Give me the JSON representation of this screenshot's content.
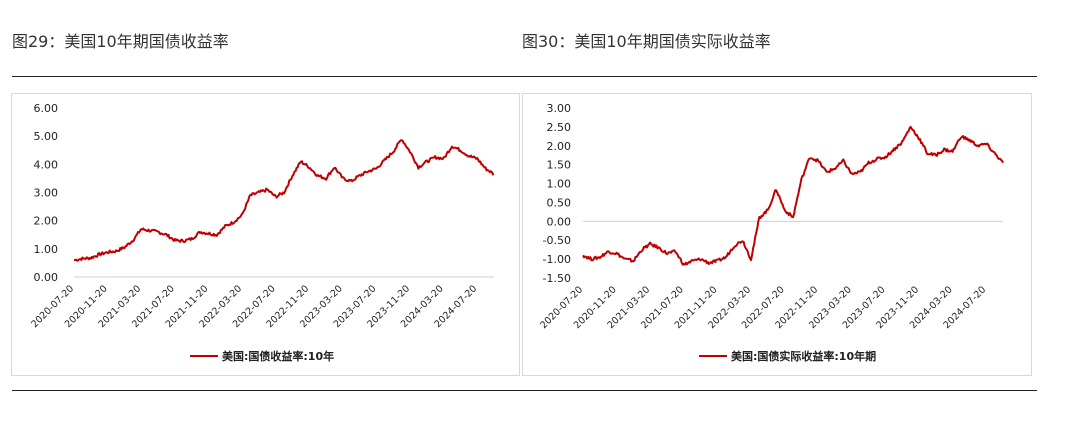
{
  "figures": [
    {
      "title": "图29：美国10年期国债收益率",
      "chart_data": {
        "type": "line",
        "title": "",
        "xlabel": "",
        "ylabel": "",
        "ylim": [
          0,
          6
        ],
        "y_ticks": [
          "0.00",
          "1.00",
          "2.00",
          "3.00",
          "4.00",
          "5.00",
          "6.00"
        ],
        "x_ticks": [
          "2020-07-20",
          "2020-11-20",
          "2021-03-20",
          "2021-07-20",
          "2021-11-20",
          "2022-03-20",
          "2022-07-20",
          "2022-11-20",
          "2023-03-20",
          "2023-07-20",
          "2023-11-20",
          "2024-03-20",
          "2024-07-20"
        ],
        "grid": "baseline only",
        "legend": "bottom-center",
        "series": [
          {
            "name": "美国:国债收益率:10年",
            "color": "#c00000",
            "x": [
              "2020-07-20",
              "2020-08-20",
              "2020-09-20",
              "2020-10-20",
              "2020-11-20",
              "2020-12-20",
              "2021-01-20",
              "2021-02-20",
              "2021-03-20",
              "2021-04-20",
              "2021-05-20",
              "2021-06-20",
              "2021-07-20",
              "2021-08-20",
              "2021-09-20",
              "2021-10-20",
              "2021-11-20",
              "2021-12-20",
              "2022-01-20",
              "2022-02-20",
              "2022-03-20",
              "2022-04-20",
              "2022-05-20",
              "2022-06-20",
              "2022-07-20",
              "2022-08-20",
              "2022-09-20",
              "2022-10-20",
              "2022-11-20",
              "2022-12-20",
              "2023-01-20",
              "2023-02-20",
              "2023-03-20",
              "2023-04-20",
              "2023-05-20",
              "2023-06-20",
              "2023-07-20",
              "2023-08-20",
              "2023-09-20",
              "2023-10-20",
              "2023-11-20",
              "2023-12-20",
              "2024-01-20",
              "2024-02-20",
              "2024-03-20",
              "2024-04-20",
              "2024-05-20",
              "2024-06-20",
              "2024-07-20",
              "2024-08-20",
              "2024-09-20"
            ],
            "values": [
              0.6,
              0.65,
              0.68,
              0.8,
              0.88,
              0.92,
              1.05,
              1.3,
              1.7,
              1.65,
              1.6,
              1.5,
              1.3,
              1.28,
              1.35,
              1.6,
              1.55,
              1.5,
              1.8,
              1.95,
              2.2,
              2.9,
              3.0,
              3.1,
              2.85,
              3.0,
              3.6,
              4.1,
              3.9,
              3.6,
              3.5,
              3.9,
              3.5,
              3.4,
              3.6,
              3.75,
              3.85,
              4.15,
              4.45,
              4.9,
              4.45,
              3.9,
              4.1,
              4.25,
              4.2,
              4.65,
              4.5,
              4.3,
              4.2,
              3.85,
              3.65
            ]
          }
        ]
      }
    },
    {
      "title": "图30：美国10年期国债实际收益率",
      "chart_data": {
        "type": "line",
        "title": "",
        "xlabel": "",
        "ylabel": "",
        "ylim": [
          -1.5,
          3.0
        ],
        "y_ticks": [
          "-1.50",
          "-1.00",
          "-0.50",
          "0.00",
          "0.50",
          "1.00",
          "1.50",
          "2.00",
          "2.50",
          "3.00"
        ],
        "x_ticks": [
          "2020-07-20",
          "2020-11-20",
          "2021-03-20",
          "2021-07-20",
          "2021-11-20",
          "2022-03-20",
          "2022-07-20",
          "2022-11-20",
          "2023-03-20",
          "2023-07-20",
          "2023-11-20",
          "2024-03-20",
          "2024-07-20"
        ],
        "grid": "zero line only",
        "legend": "bottom-center",
        "series": [
          {
            "name": "美国:国债实际收益率:10年期",
            "color": "#c00000",
            "x": [
              "2020-07-20",
              "2020-08-20",
              "2020-09-20",
              "2020-10-20",
              "2020-11-20",
              "2020-12-20",
              "2021-01-20",
              "2021-02-20",
              "2021-03-20",
              "2021-04-20",
              "2021-05-20",
              "2021-06-20",
              "2021-07-20",
              "2021-08-20",
              "2021-09-20",
              "2021-10-20",
              "2021-11-20",
              "2021-12-20",
              "2022-01-20",
              "2022-02-20",
              "2022-03-20",
              "2022-04-20",
              "2022-05-20",
              "2022-06-20",
              "2022-07-20",
              "2022-08-20",
              "2022-09-20",
              "2022-10-20",
              "2022-11-20",
              "2022-12-20",
              "2023-01-20",
              "2023-02-20",
              "2023-03-20",
              "2023-04-20",
              "2023-05-20",
              "2023-06-20",
              "2023-07-20",
              "2023-08-20",
              "2023-09-20",
              "2023-10-20",
              "2023-11-20",
              "2023-12-20",
              "2024-01-20",
              "2024-02-20",
              "2024-03-20",
              "2024-04-20",
              "2024-05-20",
              "2024-06-20",
              "2024-07-20",
              "2024-08-20",
              "2024-09-20"
            ],
            "values": [
              -0.9,
              -1.0,
              -0.95,
              -0.8,
              -0.85,
              -1.0,
              -1.05,
              -0.75,
              -0.6,
              -0.7,
              -0.85,
              -0.8,
              -1.15,
              -1.05,
              -1.0,
              -1.1,
              -1.05,
              -0.95,
              -0.65,
              -0.5,
              -1.0,
              0.1,
              0.3,
              0.85,
              0.3,
              0.1,
              1.1,
              1.7,
              1.6,
              1.3,
              1.4,
              1.6,
              1.25,
              1.3,
              1.55,
              1.65,
              1.7,
              1.9,
              2.1,
              2.5,
              2.2,
              1.8,
              1.75,
              1.9,
              1.85,
              2.25,
              2.15,
              2.0,
              2.05,
              1.8,
              1.55
            ]
          }
        ]
      }
    }
  ]
}
